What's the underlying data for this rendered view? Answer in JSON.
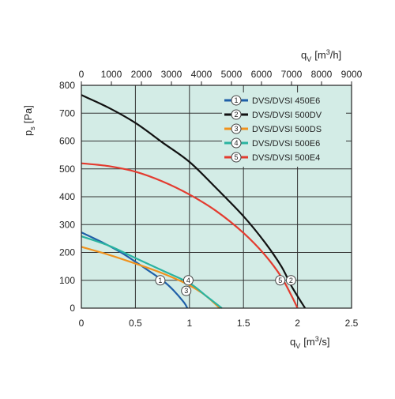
{
  "chart_data": {
    "type": "line",
    "x_bottom": {
      "label_main": "q",
      "label_sub": "V",
      "label_unit": "[m",
      "label_sup": "3",
      "label_unit_end": "/s]",
      "ticks": [
        "0",
        "0.5",
        "1",
        "1.5",
        "2",
        "2.5"
      ],
      "range": [
        0,
        2.5
      ]
    },
    "x_top": {
      "label_main": "q",
      "label_sub": "V",
      "label_unit": "[m",
      "label_sup": "3",
      "label_unit_end": "/h]",
      "ticks": [
        "0",
        "1000",
        "2000",
        "3000",
        "4000",
        "5000",
        "6000",
        "7000",
        "8000",
        "9000"
      ],
      "range": [
        0,
        9000
      ]
    },
    "y": {
      "label_main": "p",
      "label_sub": "s",
      "label_unit": "[Pa]",
      "ticks": [
        "0",
        "100",
        "200",
        "300",
        "400",
        "500",
        "600",
        "700",
        "800"
      ],
      "range": [
        0,
        800
      ]
    },
    "grid": true,
    "background_color": "#d3ece6",
    "legend_position": "top-right",
    "series": [
      {
        "id": "1",
        "name": "DVS/DVSI 450E6",
        "color": "#1f5fa8",
        "points": [
          [
            0,
            272
          ],
          [
            0.2,
            235
          ],
          [
            0.4,
            192
          ],
          [
            0.6,
            140
          ],
          [
            0.75,
            100
          ],
          [
            0.85,
            65
          ],
          [
            0.95,
            20
          ],
          [
            0.98,
            0
          ]
        ],
        "marker": [
          0.73,
          100
        ]
      },
      {
        "id": "2",
        "name": "DVS/DVSI 500DV",
        "color": "#111111",
        "points": [
          [
            0,
            765
          ],
          [
            0.25,
            720
          ],
          [
            0.5,
            665
          ],
          [
            0.75,
            595
          ],
          [
            1.0,
            525
          ],
          [
            1.25,
            430
          ],
          [
            1.5,
            330
          ],
          [
            1.7,
            235
          ],
          [
            1.85,
            150
          ],
          [
            1.95,
            75
          ],
          [
            2.07,
            0
          ]
        ],
        "marker": [
          1.94,
          100
        ]
      },
      {
        "id": "3",
        "name": "DVS/DVSI 500DS",
        "color": "#f0921d",
        "points": [
          [
            0,
            220
          ],
          [
            0.25,
            192
          ],
          [
            0.5,
            160
          ],
          [
            0.75,
            125
          ],
          [
            1.0,
            82
          ],
          [
            1.15,
            45
          ],
          [
            1.28,
            0
          ]
        ],
        "marker": [
          0.97,
          62
        ]
      },
      {
        "id": "4",
        "name": "DVS/DVSI 500E6",
        "color": "#2ab3a0",
        "points": [
          [
            0,
            258
          ],
          [
            0.25,
            225
          ],
          [
            0.5,
            180
          ],
          [
            0.75,
            135
          ],
          [
            1.0,
            90
          ],
          [
            1.15,
            45
          ],
          [
            1.3,
            0
          ]
        ],
        "marker": [
          0.99,
          100
        ]
      },
      {
        "id": "5",
        "name": "DVS/DVSI 500E4",
        "color": "#e33b2f",
        "points": [
          [
            0,
            520
          ],
          [
            0.25,
            510
          ],
          [
            0.5,
            490
          ],
          [
            0.75,
            455
          ],
          [
            1.0,
            408
          ],
          [
            1.25,
            348
          ],
          [
            1.5,
            270
          ],
          [
            1.7,
            190
          ],
          [
            1.85,
            112
          ],
          [
            1.95,
            40
          ],
          [
            2.0,
            0
          ]
        ],
        "marker": [
          1.84,
          100
        ]
      }
    ]
  }
}
